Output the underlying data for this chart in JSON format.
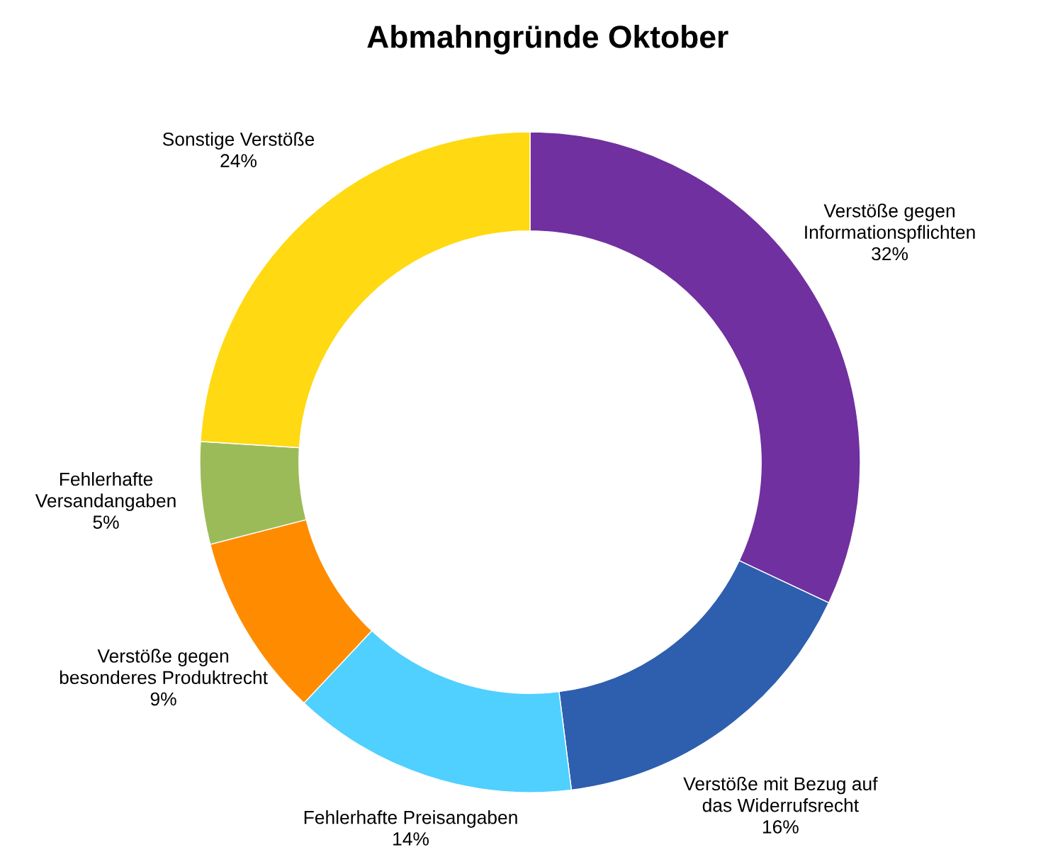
{
  "chart_data": {
    "type": "donut",
    "title": "Abmahngründe Oktober",
    "categories": [
      "Verstöße gegen\nInformationspflichten",
      "Verstöße mit Bezug auf\ndas Widerrufsrecht",
      "Fehlerhafte Preisangaben",
      "Verstöße gegen\nbesonderes Produktrecht",
      "Fehlerhafte\nVersandangaben",
      "Sonstige Verstöße"
    ],
    "values": [
      32,
      16,
      14,
      9,
      5,
      24
    ],
    "colors": [
      "#7030a0",
      "#2e5eae",
      "#4fd0ff",
      "#ff8c00",
      "#9bbb59",
      "#ffd912"
    ],
    "value_labels": [
      "32%",
      "16%",
      "14%",
      "9%",
      "5%",
      "24%"
    ],
    "legend": false
  }
}
